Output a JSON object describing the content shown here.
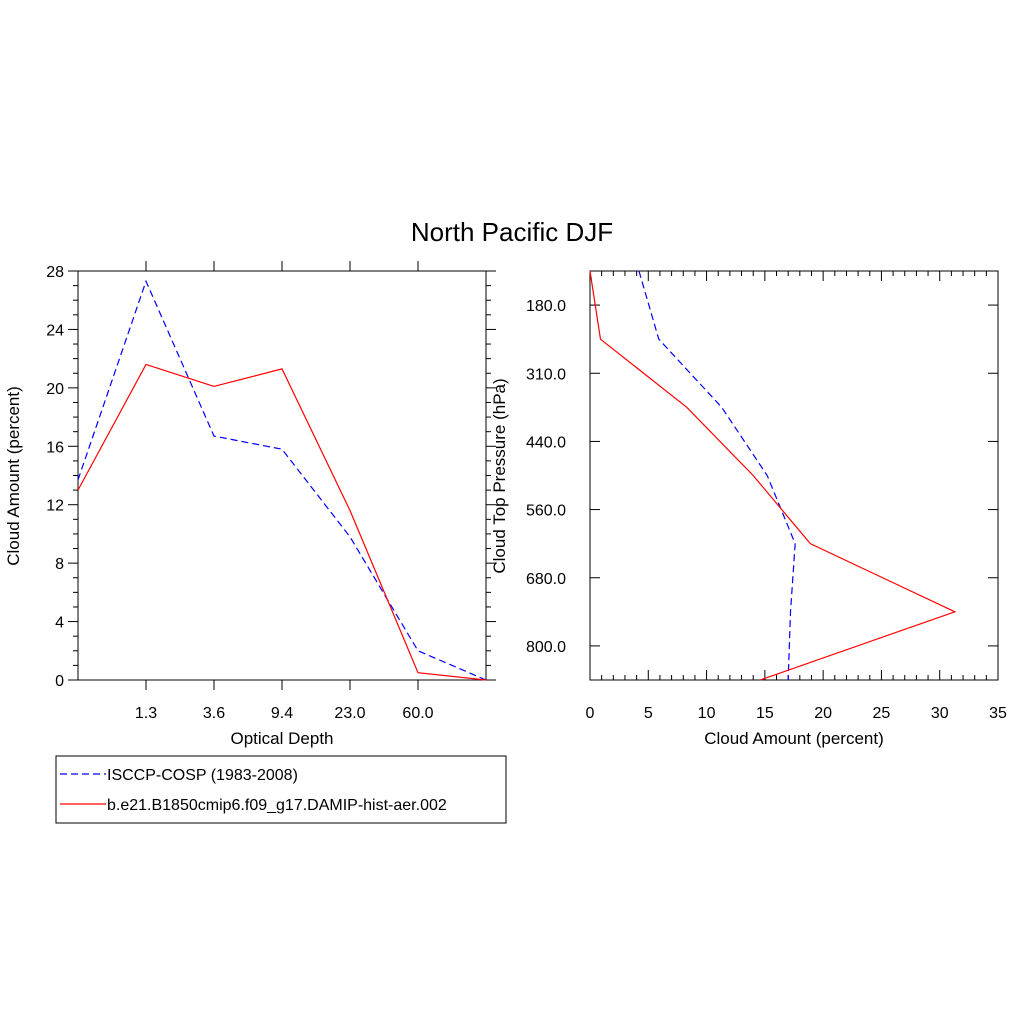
{
  "title": "North Pacific DJF",
  "chart_data": [
    {
      "type": "line",
      "xlabel": "Optical Depth",
      "ylabel": "Cloud Amount (percent)",
      "xtick_labels": [
        "1.3",
        "3.6",
        "9.4",
        "23.0",
        "60.0"
      ],
      "ylim": [
        0,
        28
      ],
      "yticks": [
        0,
        4,
        8,
        12,
        16,
        20,
        24,
        28
      ],
      "series": [
        {
          "name": "ISCCP-COSP (1983-2008)",
          "style": "dashed",
          "color": "#0000ff",
          "x": [
            0,
            1,
            2,
            3,
            4,
            5,
            6
          ],
          "values": [
            13.7,
            27.3,
            16.7,
            15.8,
            9.8,
            2.0,
            0.0
          ]
        },
        {
          "name": "b.e21.B1850cmip6.f09_g17.DAMIP-hist-aer.002",
          "style": "solid",
          "color": "#ff0000",
          "x": [
            0,
            1,
            2,
            3,
            4,
            5,
            6
          ],
          "values": [
            13.0,
            21.6,
            20.1,
            21.3,
            11.6,
            0.5,
            0.0
          ]
        }
      ]
    },
    {
      "type": "line",
      "xlabel": "Cloud Amount (percent)",
      "ylabel": "Cloud Top Pressure (hPa)",
      "xlim": [
        0,
        35
      ],
      "xticks": [
        0,
        5,
        10,
        15,
        20,
        25,
        30,
        35
      ],
      "ytick_labels": [
        "180.0",
        "310.0",
        "440.0",
        "560.0",
        "680.0",
        "800.0"
      ],
      "series": [
        {
          "name": "ISCCP-COSP (1983-2008)",
          "style": "dashed",
          "color": "#0000ff",
          "levels": [
            0,
            1,
            2,
            3,
            4,
            5,
            6
          ],
          "values": [
            4.2,
            5.9,
            11.3,
            15.2,
            17.6,
            17.2,
            17.0
          ]
        },
        {
          "name": "b.e21.B1850cmip6.f09_g17.DAMIP-hist-aer.002",
          "style": "solid",
          "color": "#ff0000",
          "levels": [
            0,
            1,
            2,
            3,
            4,
            5,
            6
          ],
          "values": [
            0.0,
            0.9,
            8.3,
            14.0,
            18.9,
            31.3,
            14.6
          ]
        }
      ]
    }
  ],
  "legend": [
    {
      "label": "ISCCP-COSP (1983-2008)",
      "color": "#0000ff",
      "style": "dashed"
    },
    {
      "label": "b.e21.B1850cmip6.f09_g17.DAMIP-hist-aer.002",
      "color": "#ff0000",
      "style": "solid"
    }
  ]
}
